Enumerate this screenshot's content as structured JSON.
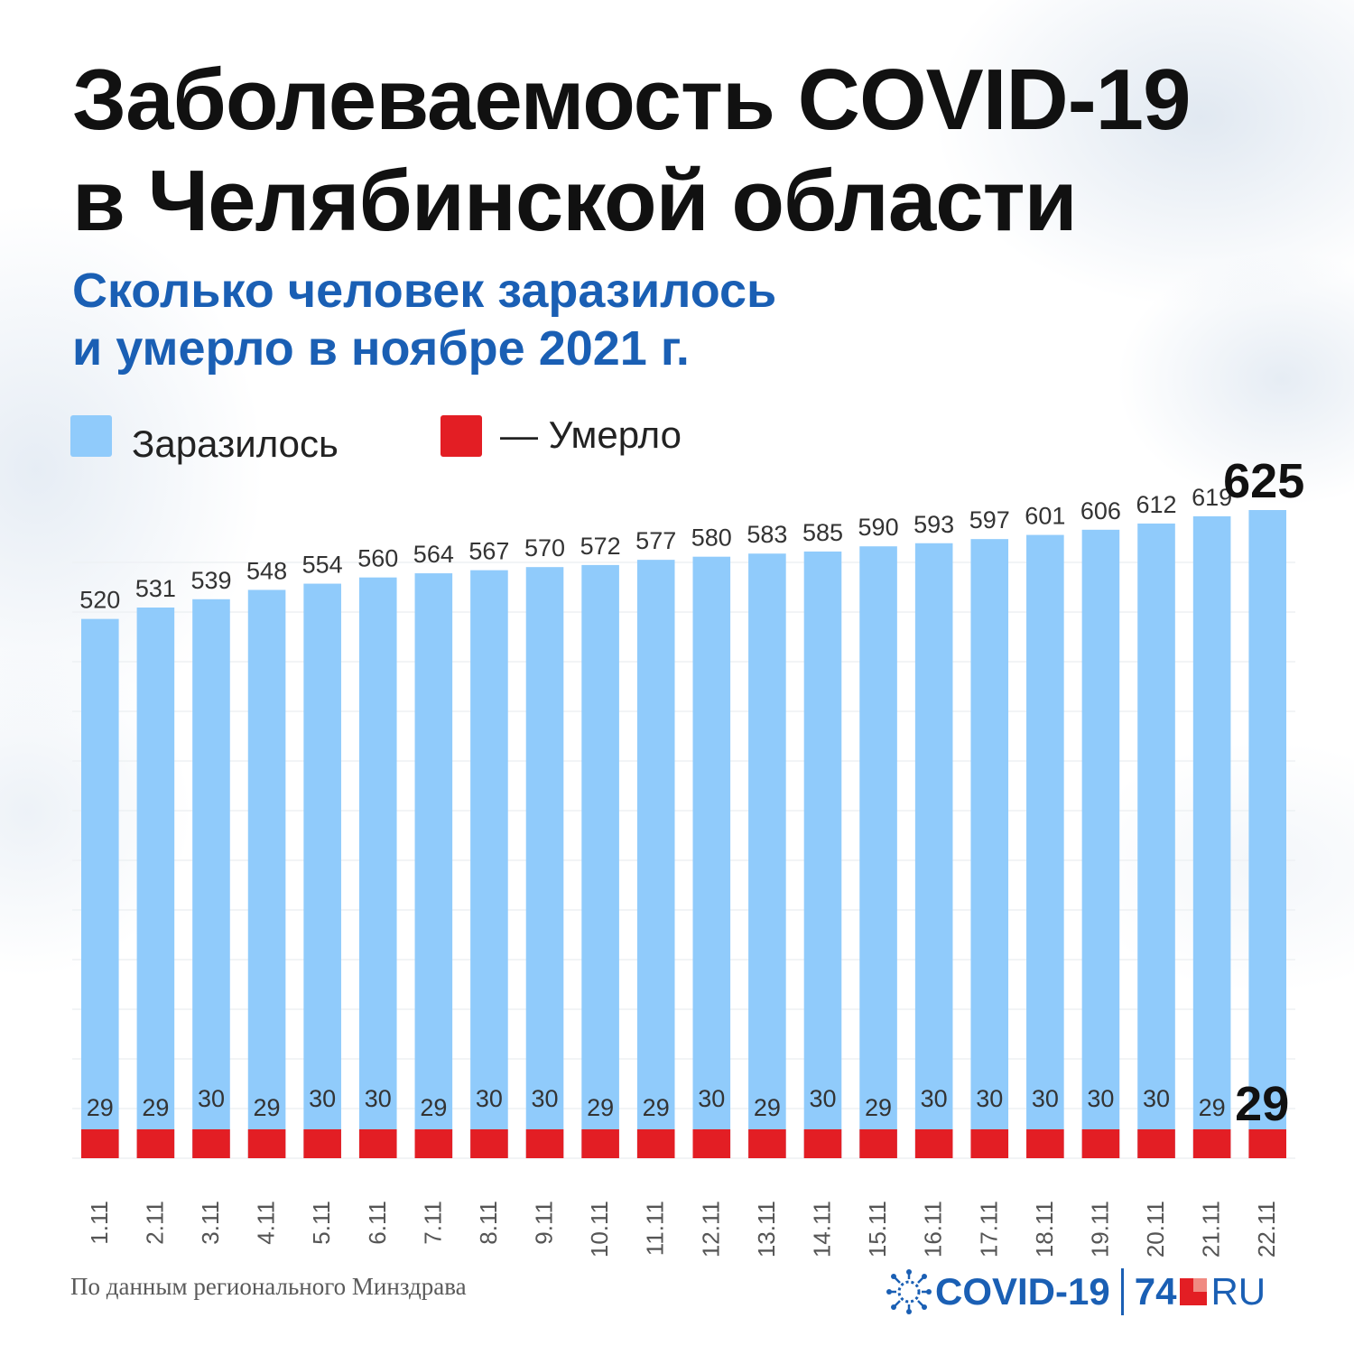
{
  "header": {
    "title_line1": "Заболеваемость COVID-19",
    "title_line2": "в Челябинской области",
    "subtitle_line1": "Сколько человек заразилось",
    "subtitle_line2": "и умерло в ноябре 2021 г."
  },
  "legend": {
    "infected_label": "Заразилось",
    "deaths_label": "— Умерло"
  },
  "footer": {
    "source": "По данным регионального Минздрава",
    "logo_covid": "COVID-19",
    "logo_number": "74",
    "logo_ru": "RU"
  },
  "colors": {
    "infected": "#90cbfb",
    "deaths": "#e31e24",
    "title": "#111111",
    "subtitle": "#1a5fb4",
    "logo": "#1a5fb4",
    "logo_square_light": "#f08a82",
    "logo_square_dark": "#e31e24"
  },
  "chart_data": {
    "type": "bar",
    "title": "Заболеваемость COVID-19 в Челябинской области",
    "subtitle": "Сколько человек заразилось и умерло в ноябре 2021 г.",
    "categories": [
      "1.11",
      "2.11",
      "3.11",
      "4.11",
      "5.11",
      "6.11",
      "7.11",
      "8.11",
      "9.11",
      "10.11",
      "11.11",
      "12.11",
      "13.11",
      "14.11",
      "15.11",
      "16.11",
      "17.11",
      "18.11",
      "19.11",
      "20.11",
      "21.11",
      "22.11"
    ],
    "series": [
      {
        "name": "Заразилось",
        "values": [
          520,
          531,
          539,
          548,
          554,
          560,
          564,
          567,
          570,
          572,
          577,
          580,
          583,
          585,
          590,
          593,
          597,
          601,
          606,
          612,
          619,
          625
        ]
      },
      {
        "name": "Умерло",
        "values": [
          29,
          29,
          30,
          29,
          30,
          30,
          29,
          30,
          30,
          29,
          29,
          30,
          29,
          30,
          29,
          30,
          30,
          30,
          30,
          30,
          29,
          29
        ]
      }
    ],
    "ylim": [
      0,
      625
    ],
    "grid": true,
    "legend_position": "top-left",
    "highlight_last": true
  }
}
